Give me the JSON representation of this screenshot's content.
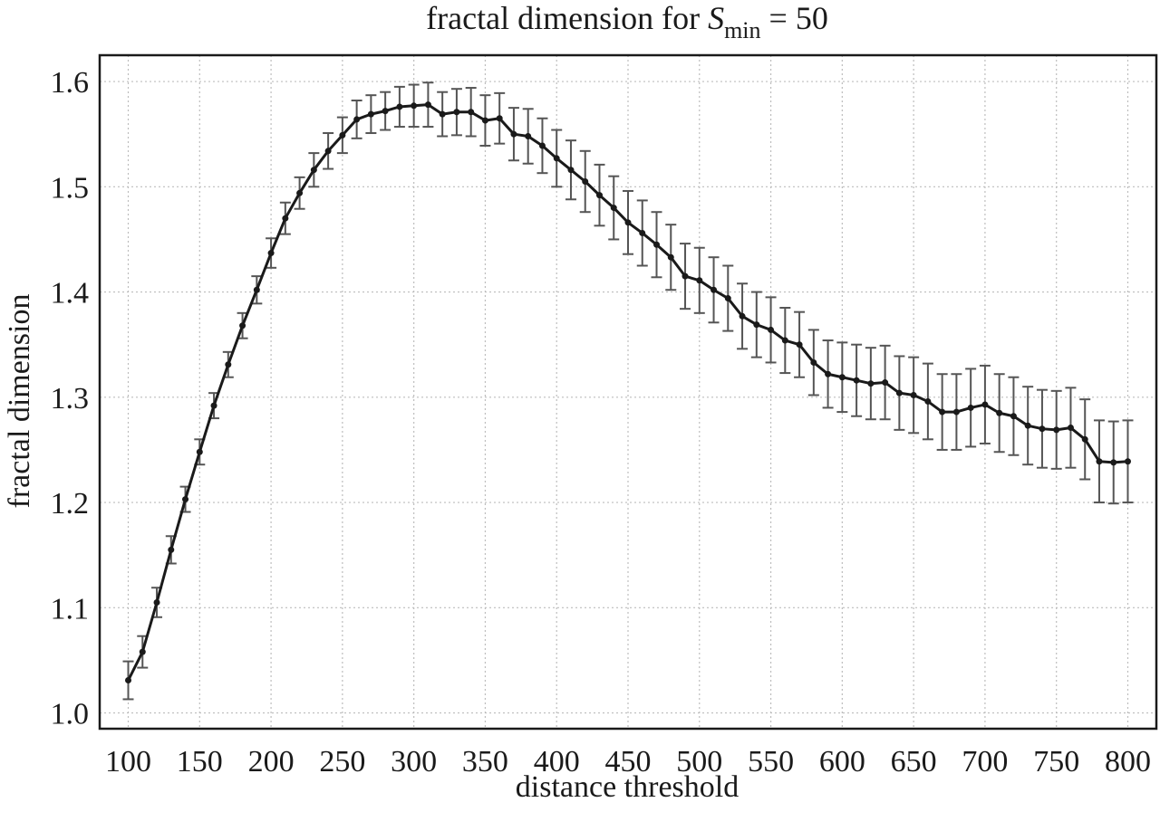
{
  "chart_data": {
    "type": "line",
    "title_prefix": "fractal dimension for ",
    "title_symbol": "S",
    "title_subscript": "min",
    "title_suffix": " = 50",
    "xlabel": "distance threshold",
    "ylabel": "fractal dimension",
    "xlim": [
      80,
      820
    ],
    "ylim": [
      0.985,
      1.625
    ],
    "xticks": [
      100,
      150,
      200,
      250,
      300,
      350,
      400,
      450,
      500,
      550,
      600,
      650,
      700,
      750,
      800
    ],
    "yticks": [
      1.0,
      1.1,
      1.2,
      1.3,
      1.4,
      1.5,
      1.6
    ],
    "ytick_labels": [
      "1.0",
      "1.1",
      "1.2",
      "1.3",
      "1.4",
      "1.5",
      "1.6"
    ],
    "grid": true,
    "grid_style": "dotted",
    "line_color": "#1a1a1a",
    "errorbar_color": "#555555",
    "x": [
      100,
      110,
      120,
      130,
      140,
      150,
      160,
      170,
      180,
      190,
      200,
      210,
      220,
      230,
      240,
      250,
      260,
      270,
      280,
      290,
      300,
      310,
      320,
      330,
      340,
      350,
      360,
      370,
      380,
      390,
      400,
      410,
      420,
      430,
      440,
      450,
      460,
      470,
      480,
      490,
      500,
      510,
      520,
      530,
      540,
      550,
      560,
      570,
      580,
      590,
      600,
      610,
      620,
      630,
      640,
      650,
      660,
      670,
      680,
      690,
      700,
      710,
      720,
      730,
      740,
      750,
      760,
      770,
      780,
      790,
      800
    ],
    "y": [
      1.031,
      1.058,
      1.105,
      1.155,
      1.203,
      1.248,
      1.292,
      1.331,
      1.368,
      1.402,
      1.437,
      1.47,
      1.494,
      1.516,
      1.534,
      1.549,
      1.564,
      1.569,
      1.572,
      1.576,
      1.577,
      1.578,
      1.569,
      1.571,
      1.571,
      1.563,
      1.565,
      1.55,
      1.548,
      1.539,
      1.527,
      1.516,
      1.505,
      1.492,
      1.48,
      1.466,
      1.456,
      1.445,
      1.433,
      1.415,
      1.411,
      1.402,
      1.394,
      1.377,
      1.369,
      1.364,
      1.354,
      1.35,
      1.333,
      1.322,
      1.319,
      1.316,
      1.313,
      1.314,
      1.304,
      1.302,
      1.296,
      1.286,
      1.286,
      1.29,
      1.293,
      1.285,
      1.282,
      1.273,
      1.27,
      1.269,
      1.271,
      1.26,
      1.239,
      1.238,
      1.239
    ],
    "err": [
      0.018,
      0.015,
      0.014,
      0.013,
      0.012,
      0.012,
      0.012,
      0.012,
      0.012,
      0.013,
      0.014,
      0.015,
      0.015,
      0.016,
      0.017,
      0.017,
      0.018,
      0.018,
      0.018,
      0.019,
      0.02,
      0.021,
      0.021,
      0.022,
      0.023,
      0.024,
      0.024,
      0.025,
      0.026,
      0.026,
      0.027,
      0.028,
      0.029,
      0.029,
      0.03,
      0.03,
      0.031,
      0.031,
      0.031,
      0.031,
      0.031,
      0.031,
      0.031,
      0.031,
      0.031,
      0.031,
      0.031,
      0.031,
      0.031,
      0.032,
      0.033,
      0.034,
      0.034,
      0.035,
      0.035,
      0.036,
      0.036,
      0.036,
      0.036,
      0.037,
      0.037,
      0.037,
      0.037,
      0.037,
      0.037,
      0.037,
      0.038,
      0.038,
      0.039,
      0.039,
      0.039
    ]
  }
}
